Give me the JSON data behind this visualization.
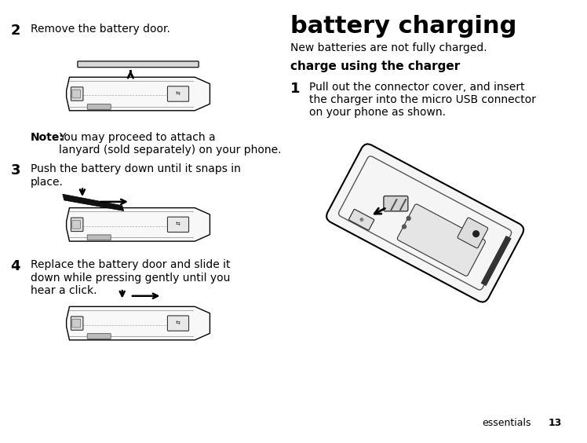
{
  "bg_color": "#ffffff",
  "text_color": "#000000",
  "page_number": "13",
  "footer_right": "essentials",
  "title": "battery charging",
  "subtitle": "New batteries are not fully charged.",
  "section_header": "charge using the charger",
  "step1_num": "1",
  "step1_text": "Pull out the connector cover, and insert\nthe charger into the micro USB connector\non your phone as shown.",
  "step2_num": "2",
  "step2_text": "Remove the battery door.",
  "step2_note_bold": "Note:",
  "step2_note_rest": " You may proceed to attach a\nlanyard (sold separately) on your phone.",
  "step3_num": "3",
  "step3_text": "Push the battery down until it snaps in\nplace.",
  "step4_num": "4",
  "step4_text": "Replace the battery door and slide it\ndown while pressing gently until you\nhear a click.",
  "title_fontsize": 22,
  "subtitle_fontsize": 10,
  "section_header_fontsize": 11,
  "step_num_fontsize": 13,
  "step_text_fontsize": 10,
  "note_fontsize": 10
}
